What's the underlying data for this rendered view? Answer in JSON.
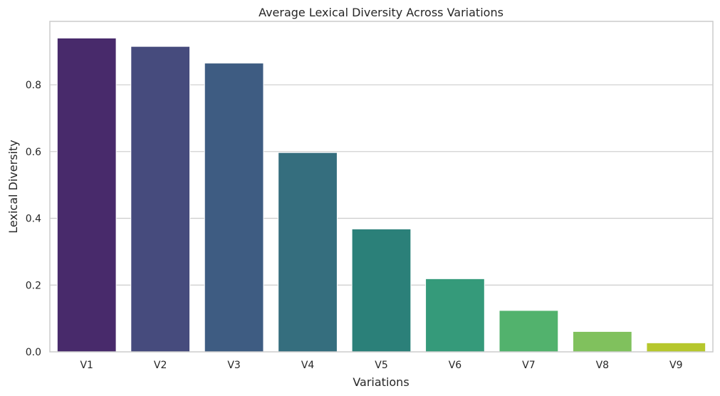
{
  "chart_data": {
    "type": "bar",
    "title": "Average Lexical Diversity Across Variations",
    "xlabel": "Variations",
    "ylabel": "Lexical Diversity",
    "categories": [
      "V1",
      "V2",
      "V3",
      "V4",
      "V5",
      "V6",
      "V7",
      "V8",
      "V9"
    ],
    "values": [
      0.94,
      0.915,
      0.865,
      0.597,
      0.368,
      0.219,
      0.124,
      0.061,
      0.027
    ],
    "ylim": [
      0,
      0.99
    ],
    "yticks": [
      0.0,
      0.2,
      0.4,
      0.6,
      0.8
    ],
    "ytick_labels": [
      "0.0",
      "0.2",
      "0.4",
      "0.6",
      "0.8"
    ],
    "grid": "horizontal",
    "colors": [
      "#482a6b",
      "#464b7d",
      "#3e5c82",
      "#356e7e",
      "#2b8079",
      "#359a7a",
      "#52b26d",
      "#80c15d",
      "#b6c72d"
    ]
  }
}
